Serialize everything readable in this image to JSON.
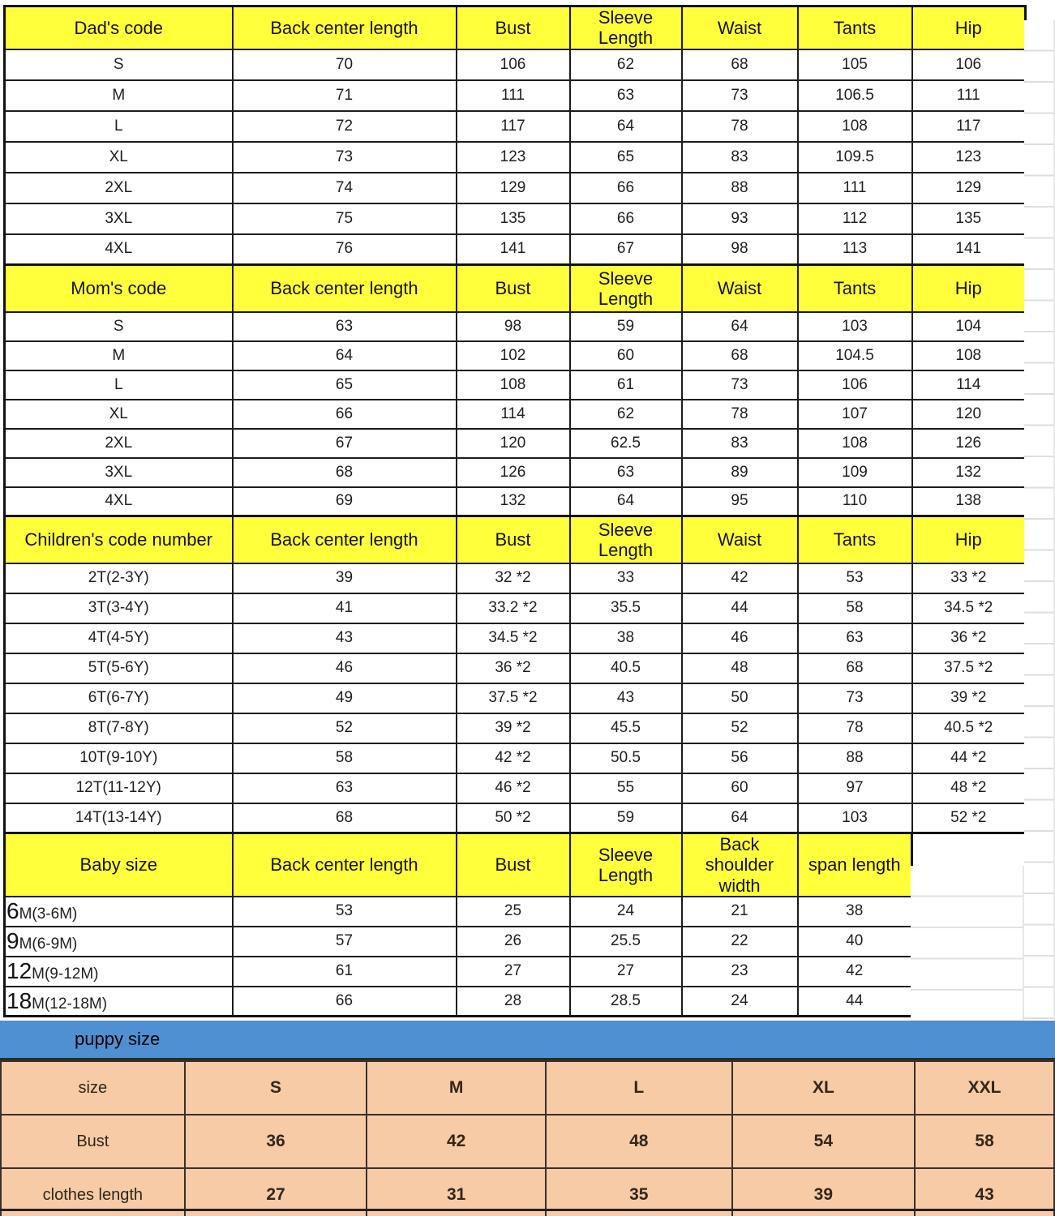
{
  "colors": {
    "header_yellow": "#ffff3c",
    "puppy_bar_blue": "#4e90d1",
    "puppy_table_pink": "#f6cba6",
    "children_blue_text": "#3078c0",
    "children_navy_text": "#28487e",
    "children_red_text": "#ea332e"
  },
  "size_tables": [
    {
      "name": "dad",
      "corner_label": "Dad's code",
      "columns": [
        "Back center length",
        "Bust",
        "Sleeve\nLength",
        "Waist",
        "Tants",
        "Hip"
      ],
      "rows": [
        {
          "label": "S",
          "values": [
            "70",
            "106",
            "62",
            "68",
            "105",
            "106"
          ]
        },
        {
          "label": "M",
          "values": [
            "71",
            "111",
            "63",
            "73",
            "106.5",
            "111"
          ]
        },
        {
          "label": "L",
          "values": [
            "72",
            "117",
            "64",
            "78",
            "108",
            "117"
          ]
        },
        {
          "label": "XL",
          "values": [
            "73",
            "123",
            "65",
            "83",
            "109.5",
            "123"
          ]
        },
        {
          "label": "2XL",
          "values": [
            "74",
            "129",
            "66",
            "88",
            "111",
            "129"
          ]
        },
        {
          "label": "3XL",
          "values": [
            "75",
            "135",
            "66",
            "93",
            "112",
            "135"
          ]
        },
        {
          "label": "4XL",
          "values": [
            "76",
            "141",
            "67",
            "98",
            "113",
            "141"
          ]
        }
      ]
    },
    {
      "name": "mom",
      "corner_label": "Mom's code",
      "columns": [
        "Back center length",
        "Bust",
        "Sleeve\nLength",
        "Waist",
        "Tants",
        "Hip"
      ],
      "rows": [
        {
          "label": "S",
          "values": [
            "63",
            "98",
            "59",
            "64",
            "103",
            "104"
          ]
        },
        {
          "label": "M",
          "values": [
            "64",
            "102",
            "60",
            "68",
            "104.5",
            "108"
          ]
        },
        {
          "label": "L",
          "values": [
            "65",
            "108",
            "61",
            "73",
            "106",
            "114"
          ]
        },
        {
          "label": "XL",
          "values": [
            "66",
            "114",
            "62",
            "78",
            "107",
            "120"
          ]
        },
        {
          "label": "2XL",
          "values": [
            "67",
            "120",
            "62.5",
            "83",
            "108",
            "126"
          ]
        },
        {
          "label": "3XL",
          "values": [
            "68",
            "126",
            "63",
            "89",
            "109",
            "132"
          ]
        },
        {
          "label": "4XL",
          "values": [
            "69",
            "132",
            "64",
            "95",
            "110",
            "138"
          ]
        }
      ]
    },
    {
      "name": "children",
      "corner_label": "Children's code number",
      "columns": [
        "Back center length",
        "Bust",
        "Sleeve\nLength",
        "Waist",
        "Tants",
        "Hip"
      ],
      "last_column_black": true,
      "rows": [
        {
          "label": "2T(2-3Y)",
          "color": "blue",
          "values": [
            "39",
            "32 *2",
            "33",
            "42",
            "53",
            "33 *2"
          ]
        },
        {
          "label": "3T(3-4Y)",
          "color": "blue",
          "values": [
            "41",
            "33.2 *2",
            "35.5",
            "44",
            "58",
            "34.5 *2"
          ]
        },
        {
          "label": "4T(4-5Y)",
          "color": "blue",
          "values": [
            "43",
            "34.5 *2",
            "38",
            "46",
            "63",
            "36 *2"
          ]
        },
        {
          "label": "5T(5-6Y)",
          "color": "blue",
          "values": [
            "46",
            "36 *2",
            "40.5",
            "48",
            "68",
            "37.5 *2"
          ]
        },
        {
          "label": "6T(6-7Y)",
          "color": "blue",
          "values": [
            "49",
            "37.5 *2",
            "43",
            "50",
            "73",
            "39 *2"
          ]
        },
        {
          "label": "8T(7-8Y)",
          "color": "navy",
          "values": [
            "52",
            "39 *2",
            "45.5",
            "52",
            "78",
            "40.5 *2"
          ]
        },
        {
          "label": "10T(9-10Y)",
          "color": "navy",
          "values": [
            "58",
            "42 *2",
            "50.5",
            "56",
            "88",
            "44 *2"
          ]
        },
        {
          "label": "12T(11-12Y)",
          "color": "red",
          "values": [
            "63",
            "46 *2",
            "55",
            "60",
            "97",
            "48 *2"
          ]
        },
        {
          "label": "14T(13-14Y)",
          "color": "red",
          "values": [
            "68",
            "50 *2",
            "59",
            "64",
            "103",
            "52 *2"
          ]
        }
      ]
    },
    {
      "name": "baby",
      "corner_label": "Baby size",
      "columns": [
        "Back center length",
        "Bust",
        "Sleeve\nLength",
        "Back\nshoulder width",
        "span length"
      ],
      "baby_labels": true,
      "rows": [
        {
          "label_prefix": "6",
          "label_rest": "M(3-6M)",
          "values": [
            "53",
            "25",
            "24",
            "21",
            "38"
          ]
        },
        {
          "label_prefix": "9",
          "label_rest": "M(6-9M)",
          "values": [
            "57",
            "26",
            "25.5",
            "22",
            "40"
          ]
        },
        {
          "label_prefix": "12",
          "label_rest": "M(9-12M)",
          "values": [
            "61",
            "27",
            "27",
            "23",
            "42"
          ]
        },
        {
          "label_prefix": "18",
          "label_rest": "M(12-18M)",
          "values": [
            "66",
            "28",
            "28.5",
            "24",
            "44"
          ]
        }
      ]
    }
  ],
  "puppy": {
    "bar_label": "puppy size",
    "rows": [
      {
        "label": "size",
        "values": [
          "S",
          "M",
          "L",
          "XL",
          "XXL"
        ]
      },
      {
        "label": "Bust",
        "values": [
          "36",
          "42",
          "48",
          "54",
          "58"
        ]
      },
      {
        "label": "clothes length",
        "values": [
          "27",
          "31",
          "35",
          "39",
          "43"
        ]
      }
    ]
  }
}
